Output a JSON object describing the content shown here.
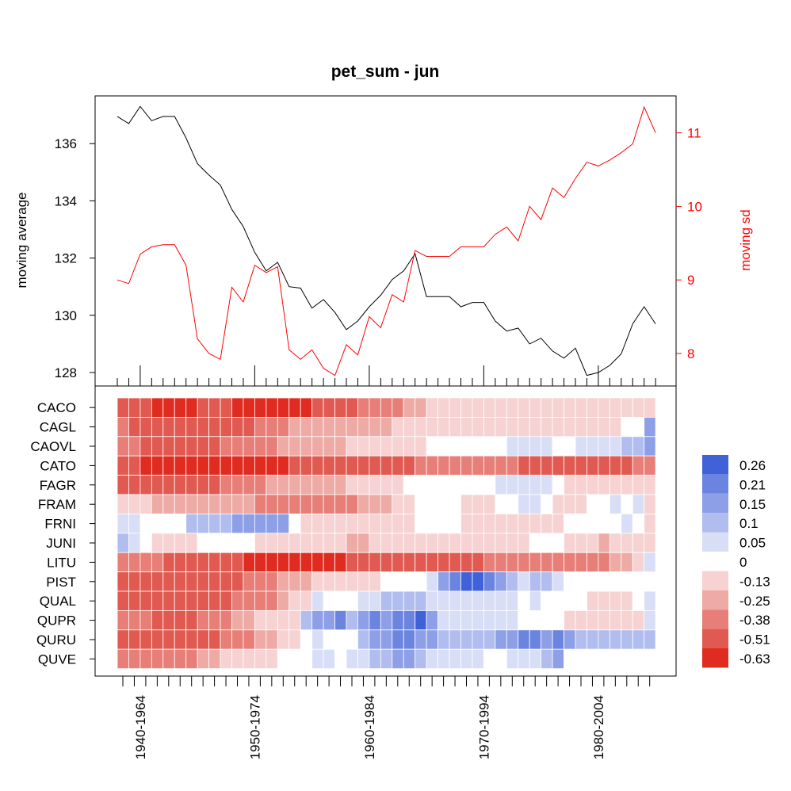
{
  "chart_data": [
    {
      "type": "line",
      "title": "pet_sum - jun",
      "ylabel": "moving average",
      "ylabel_right": "moving sd",
      "ylim": [
        127.8,
        137.7
      ],
      "yticks": [
        128,
        130,
        132,
        134,
        136
      ],
      "ylim_right": [
        7.7,
        11.5
      ],
      "yticks_right": [
        8,
        9,
        10,
        11
      ],
      "windows": 48,
      "series": [
        {
          "name": "moving average",
          "axis": "left",
          "color": "#000000",
          "values": [
            136.95,
            136.7,
            137.3,
            136.8,
            136.95,
            136.95,
            136.2,
            135.3,
            134.9,
            134.55,
            133.7,
            133.1,
            132.2,
            131.55,
            131.85,
            131.0,
            130.95,
            130.25,
            130.55,
            130.1,
            129.5,
            129.8,
            130.3,
            130.7,
            131.25,
            131.55,
            132.15,
            130.65,
            130.65,
            130.65,
            130.3,
            130.45,
            130.45,
            129.8,
            129.45,
            129.55,
            129.0,
            129.2,
            128.75,
            128.5,
            128.85,
            127.9,
            128.0,
            128.25,
            128.65,
            129.7,
            130.3,
            129.7
          ]
        },
        {
          "name": "moving sd",
          "axis": "right",
          "color": "#ff0000",
          "values": [
            9.0,
            8.95,
            9.35,
            9.45,
            9.48,
            9.48,
            9.2,
            8.2,
            8.0,
            7.92,
            8.9,
            8.7,
            9.2,
            9.1,
            9.18,
            8.05,
            7.92,
            8.05,
            7.8,
            7.7,
            8.12,
            7.98,
            8.5,
            8.35,
            8.8,
            8.7,
            9.4,
            9.32,
            9.32,
            9.32,
            9.45,
            9.45,
            9.45,
            9.62,
            9.72,
            9.53,
            10.0,
            9.82,
            10.25,
            10.12,
            10.38,
            10.6,
            10.55,
            10.63,
            10.73,
            10.85,
            11.35,
            11.0
          ]
        }
      ]
    },
    {
      "type": "heatmap",
      "rows": [
        "CACO",
        "CAGL",
        "CAOVL",
        "CATO",
        "FAGR",
        "FRAM",
        "FRNI",
        "JUNI",
        "LITU",
        "PIST",
        "QUAL",
        "QUPR",
        "QURU",
        "QUVE"
      ],
      "x_tick_labels": [
        "1940-1964",
        "1950-1974",
        "1960-1984",
        "1970-1994",
        "1980-2004"
      ],
      "columns": 47,
      "legend": {
        "placement": "right",
        "labels": [
          "0.26",
          "0.21",
          "0.15",
          "0.1",
          "0.05",
          "0",
          "-0.13",
          "-0.25",
          "-0.38",
          "-0.51",
          "-0.63"
        ],
        "colors": [
          "#4062d8",
          "#6b84e0",
          "#8d9fe6",
          "#b1bdee",
          "#d9def7",
          "#ffffff",
          "#f6d3d2",
          "#eeaaa5",
          "#e77f78",
          "#e05a51",
          "#e02b20"
        ]
      },
      "values": [
        [
          -0.55,
          -0.56,
          -0.56,
          -0.57,
          -0.58,
          -0.58,
          -0.57,
          -0.56,
          -0.56,
          -0.56,
          -0.57,
          -0.6,
          -0.6,
          -0.6,
          -0.6,
          -0.6,
          -0.58,
          -0.52,
          -0.46,
          -0.46,
          -0.45,
          -0.39,
          -0.36,
          -0.34,
          -0.32,
          -0.28,
          -0.2,
          -0.18,
          -0.17,
          -0.16,
          -0.14,
          -0.12,
          -0.12,
          -0.13,
          -0.13,
          -0.12,
          -0.12,
          -0.13,
          -0.14,
          -0.14,
          -0.13,
          -0.12,
          -0.12,
          -0.14,
          -0.15,
          -0.16,
          -0.15
        ],
        [
          -0.43,
          -0.45,
          -0.46,
          -0.47,
          -0.48,
          -0.49,
          -0.49,
          -0.48,
          -0.47,
          -0.46,
          -0.45,
          -0.46,
          -0.42,
          -0.38,
          -0.32,
          -0.25,
          -0.22,
          -0.22,
          -0.22,
          -0.22,
          -0.22,
          -0.2,
          -0.2,
          -0.19,
          -0.18,
          -0.17,
          -0.14,
          -0.12,
          -0.1,
          -0.09,
          -0.08,
          -0.07,
          -0.07,
          -0.08,
          -0.08,
          -0.09,
          -0.1,
          -0.1,
          -0.12,
          -0.13,
          -0.14,
          -0.13,
          -0.12,
          -0.1,
          -0.05,
          0.0,
          0.13
        ],
        [
          -0.42,
          -0.44,
          -0.46,
          -0.47,
          -0.48,
          -0.49,
          -0.49,
          -0.48,
          -0.46,
          -0.44,
          -0.42,
          -0.4,
          -0.37,
          -0.33,
          -0.3,
          -0.26,
          -0.24,
          -0.22,
          -0.2,
          -0.19,
          -0.18,
          -0.17,
          -0.16,
          -0.14,
          -0.12,
          -0.1,
          -0.08,
          -0.06,
          -0.05,
          -0.04,
          -0.02,
          -0.01,
          0.0,
          0.02,
          0.04,
          0.06,
          0.06,
          0.05,
          0.02,
          0.0,
          0.04,
          0.06,
          0.06,
          0.07,
          0.08,
          0.1,
          0.14
        ],
        [
          -0.55,
          -0.56,
          -0.57,
          -0.58,
          -0.6,
          -0.61,
          -0.62,
          -0.62,
          -0.62,
          -0.62,
          -0.61,
          -0.6,
          -0.6,
          -0.6,
          -0.58,
          -0.55,
          -0.52,
          -0.52,
          -0.51,
          -0.5,
          -0.49,
          -0.48,
          -0.47,
          -0.46,
          -0.46,
          -0.45,
          -0.44,
          -0.44,
          -0.44,
          -0.44,
          -0.44,
          -0.44,
          -0.44,
          -0.44,
          -0.44,
          -0.46,
          -0.47,
          -0.49,
          -0.5,
          -0.52,
          -0.5,
          -0.48,
          -0.46,
          -0.45,
          -0.45,
          -0.44,
          -0.44
        ],
        [
          -0.46,
          -0.47,
          -0.47,
          -0.47,
          -0.47,
          -0.48,
          -0.5,
          -0.5,
          -0.47,
          -0.43,
          -0.39,
          -0.36,
          -0.33,
          -0.3,
          -0.27,
          -0.24,
          -0.22,
          -0.22,
          -0.2,
          -0.19,
          -0.17,
          -0.15,
          -0.12,
          -0.1,
          -0.08,
          -0.06,
          -0.03,
          0.0,
          0.0,
          0.01,
          0.02,
          0.02,
          0.02,
          0.03,
          0.03,
          0.04,
          0.06,
          0.07,
          -0.06,
          -0.1,
          -0.12,
          -0.14,
          -0.15,
          -0.15,
          -0.14,
          -0.12,
          -0.11
        ],
        [
          -0.08,
          -0.12,
          -0.18,
          -0.21,
          -0.22,
          -0.23,
          -0.24,
          -0.25,
          -0.27,
          -0.29,
          -0.3,
          -0.31,
          -0.33,
          -0.35,
          -0.34,
          -0.32,
          -0.33,
          -0.34,
          -0.33,
          -0.33,
          -0.32,
          -0.29,
          -0.25,
          -0.2,
          -0.15,
          -0.1,
          -0.06,
          0.0,
          0.01,
          -0.06,
          -0.08,
          -0.08,
          -0.08,
          -0.05,
          0.0,
          0.04,
          0.03,
          0.0,
          -0.08,
          -0.1,
          -0.08,
          -0.05,
          0.02,
          0.03,
          0.02,
          0.03,
          -0.1
        ],
        [
          0.07,
          0.03,
          0.01,
          0.01,
          0.02,
          0.0,
          0.08,
          0.09,
          0.1,
          0.12,
          0.14,
          0.15,
          0.14,
          0.14,
          0.13,
          -0.05,
          -0.07,
          -0.08,
          -0.09,
          -0.1,
          -0.1,
          -0.1,
          -0.11,
          -0.11,
          -0.1,
          -0.08,
          -0.05,
          0.0,
          0.0,
          -0.06,
          -0.08,
          -0.08,
          -0.09,
          -0.1,
          -0.12,
          -0.14,
          -0.16,
          -0.18,
          -0.1,
          -0.04,
          0.02,
          0.02,
          -0.06,
          -0.05,
          0.03,
          0.02,
          -0.1
        ],
        [
          0.08,
          0.03,
          -0.06,
          -0.09,
          -0.11,
          -0.1,
          -0.07,
          -0.05,
          -0.04,
          -0.02,
          -0.03,
          -0.05,
          -0.07,
          -0.08,
          -0.1,
          -0.12,
          -0.14,
          -0.16,
          -0.18,
          -0.18,
          -0.19,
          -0.19,
          -0.18,
          -0.17,
          -0.16,
          -0.15,
          -0.14,
          -0.13,
          -0.13,
          -0.13,
          -0.13,
          -0.13,
          -0.12,
          -0.12,
          -0.1,
          -0.08,
          -0.04,
          -0.02,
          -0.05,
          -0.1,
          -0.15,
          -0.18,
          -0.2,
          -0.18,
          -0.15,
          -0.12,
          -0.1
        ],
        [
          -0.34,
          -0.38,
          -0.4,
          -0.43,
          -0.45,
          -0.46,
          -0.48,
          -0.5,
          -0.52,
          -0.54,
          -0.56,
          -0.58,
          -0.6,
          -0.61,
          -0.62,
          -0.62,
          -0.63,
          -0.62,
          -0.6,
          -0.58,
          -0.56,
          -0.55,
          -0.54,
          -0.53,
          -0.52,
          -0.51,
          -0.5,
          -0.49,
          -0.48,
          -0.47,
          -0.46,
          -0.45,
          -0.44,
          -0.43,
          -0.42,
          -0.41,
          -0.4,
          -0.39,
          -0.38,
          -0.37,
          -0.36,
          -0.34,
          -0.32,
          -0.28,
          -0.22,
          -0.14,
          0.05
        ],
        [
          -0.53,
          -0.53,
          -0.52,
          -0.51,
          -0.5,
          -0.5,
          -0.5,
          -0.5,
          -0.49,
          -0.48,
          -0.46,
          -0.43,
          -0.39,
          -0.33,
          -0.27,
          -0.22,
          -0.2,
          -0.18,
          -0.15,
          -0.12,
          -0.12,
          -0.12,
          -0.08,
          -0.05,
          -0.02,
          0.0,
          0.02,
          0.04,
          0.14,
          0.2,
          0.24,
          0.26,
          0.23,
          0.14,
          0.08,
          0.05,
          0.1,
          0.12,
          0.06,
          0.01,
          -0.02,
          -0.04,
          -0.06,
          -0.06,
          -0.06,
          -0.06,
          -0.06
        ],
        [
          -0.52,
          -0.52,
          -0.51,
          -0.5,
          -0.49,
          -0.48,
          -0.47,
          -0.47,
          -0.46,
          -0.45,
          -0.43,
          -0.39,
          -0.35,
          -0.33,
          -0.3,
          -0.12,
          -0.07,
          0.03,
          -0.06,
          0.02,
          0.01,
          0.05,
          0.07,
          0.08,
          0.09,
          0.1,
          0.08,
          0.06,
          0.05,
          0.04,
          0.04,
          0.04,
          0.04,
          0.07,
          0.03,
          0.02,
          0.06,
          0.0,
          0.0,
          -0.03,
          -0.06,
          -0.08,
          -0.09,
          -0.08,
          -0.07,
          -0.05,
          0.03
        ],
        [
          -0.43,
          -0.44,
          -0.44,
          -0.45,
          -0.45,
          -0.45,
          -0.45,
          -0.43,
          -0.41,
          -0.39,
          -0.3,
          -0.2,
          -0.15,
          -0.12,
          -0.08,
          -0.07,
          0.1,
          0.13,
          0.15,
          0.18,
          0.12,
          0.15,
          0.18,
          0.16,
          0.18,
          0.2,
          0.26,
          0.17,
          0.07,
          0.07,
          0.07,
          0.07,
          0.07,
          0.06,
          0.05,
          0.0,
          -0.02,
          -0.04,
          -0.05,
          -0.09,
          -0.1,
          -0.11,
          -0.12,
          -0.12,
          -0.12,
          -0.12,
          0.03
        ],
        [
          -0.55,
          -0.55,
          -0.54,
          -0.53,
          -0.52,
          -0.51,
          -0.5,
          -0.49,
          -0.47,
          -0.43,
          -0.38,
          -0.33,
          -0.26,
          -0.2,
          -0.16,
          -0.1,
          -0.05,
          0.05,
          0.02,
          0.0,
          0.01,
          0.1,
          0.14,
          0.17,
          0.2,
          0.19,
          0.14,
          0.14,
          0.12,
          0.1,
          0.12,
          0.12,
          0.12,
          0.14,
          0.17,
          0.2,
          0.18,
          0.16,
          0.2,
          0.17,
          0.1,
          0.1,
          0.09,
          0.08,
          0.08,
          0.09,
          0.12
        ],
        [
          -0.43,
          -0.44,
          -0.44,
          -0.43,
          -0.41,
          -0.38,
          -0.33,
          -0.27,
          -0.21,
          -0.17,
          -0.15,
          -0.13,
          -0.1,
          -0.08,
          -0.06,
          -0.06,
          0.0,
          0.07,
          0.03,
          0.02,
          0.03,
          0.06,
          0.08,
          0.1,
          0.16,
          0.14,
          0.08,
          0.07,
          0.06,
          0.05,
          0.04,
          0.03,
          0.02,
          0.01,
          0.04,
          0.07,
          0.04,
          0.11,
          0.13,
          0.02,
          0.01,
          0.0,
          -0.01,
          -0.02,
          -0.02,
          -0.02,
          -0.01
        ]
      ]
    }
  ]
}
